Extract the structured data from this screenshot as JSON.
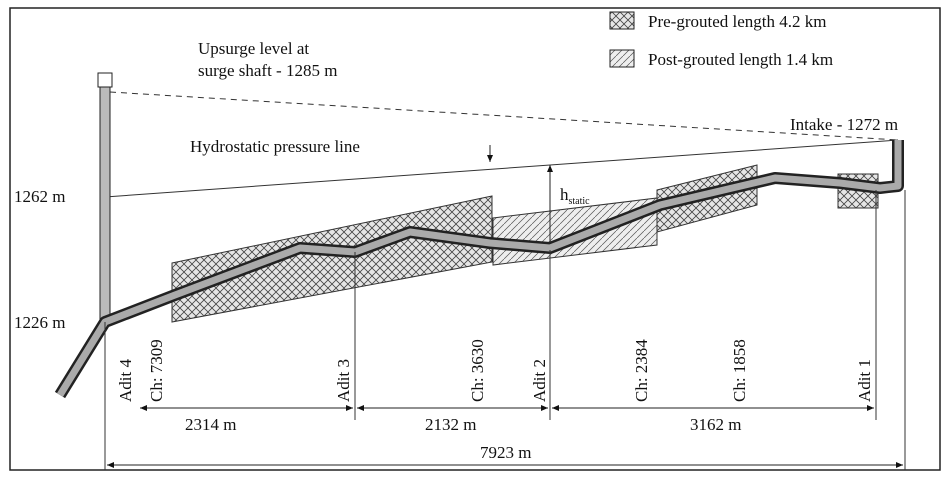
{
  "legend": [
    {
      "label": "Pre-grouted length 4.2 km"
    },
    {
      "label": "Post-grouted length 1.4 km"
    }
  ],
  "annotations": {
    "upsurge_line1": "Upsurge level at",
    "upsurge_line2": "surge shaft - 1285 m",
    "intake": "Intake - 1272 m",
    "hydrostatic": "Hydrostatic pressure line",
    "h": "h",
    "h_sub": "static"
  },
  "elevations": [
    "1262 m",
    "1226 m"
  ],
  "vertical_labels": [
    "Adit 4",
    "Ch: 7309",
    "Adit 3",
    "Ch: 3630",
    "Adit 2",
    "Ch: 2384",
    "Ch: 1858",
    "Adit 1"
  ],
  "dimensions": [
    "2314 m",
    "2132 m",
    "3162 m",
    "7923 m"
  ]
}
